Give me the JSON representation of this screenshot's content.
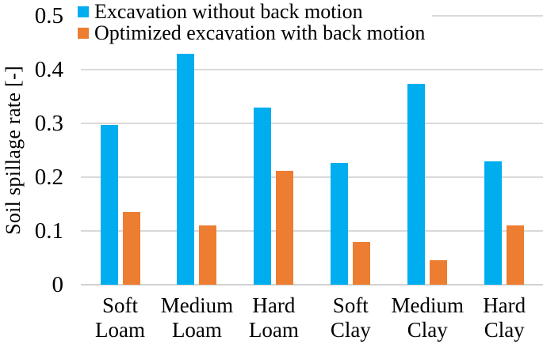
{
  "colors": {
    "series_blue": "#00AEEF",
    "series_orange": "#ED7D31",
    "gridline": "#D9D9D9",
    "text": "#000000",
    "background": "#FFFFFF"
  },
  "y_axis": {
    "title": "Soil spillage rate [-]",
    "tick_labels": [
      "0",
      "0.1",
      "0.2",
      "0.3",
      "0.4",
      "0.5"
    ]
  },
  "chart_data": {
    "type": "bar",
    "title": "",
    "xlabel": "",
    "ylabel": "Soil spillage rate [-]",
    "categories": [
      "Soft Loam",
      "Medium Loam",
      "Hard Loam",
      "Soft Clay",
      "Medium Clay",
      "Hard Clay"
    ],
    "series": [
      {
        "name": "Excavation without back motion",
        "color": "#00AEEF",
        "values": [
          0.297,
          0.43,
          0.33,
          0.227,
          0.374,
          0.23
        ]
      },
      {
        "name": "Optimized excavation with back motion",
        "color": "#ED7D31",
        "values": [
          0.136,
          0.111,
          0.212,
          0.079,
          0.045,
          0.11
        ]
      }
    ],
    "ylim": [
      0,
      0.5
    ],
    "yticks": [
      0,
      0.1,
      0.2,
      0.3,
      0.4,
      0.5
    ],
    "ytick_labels": [
      "0",
      "0.1",
      "0.2",
      "0.3",
      "0.4",
      "0.5"
    ],
    "grid": true,
    "legend_position": "top-left"
  }
}
